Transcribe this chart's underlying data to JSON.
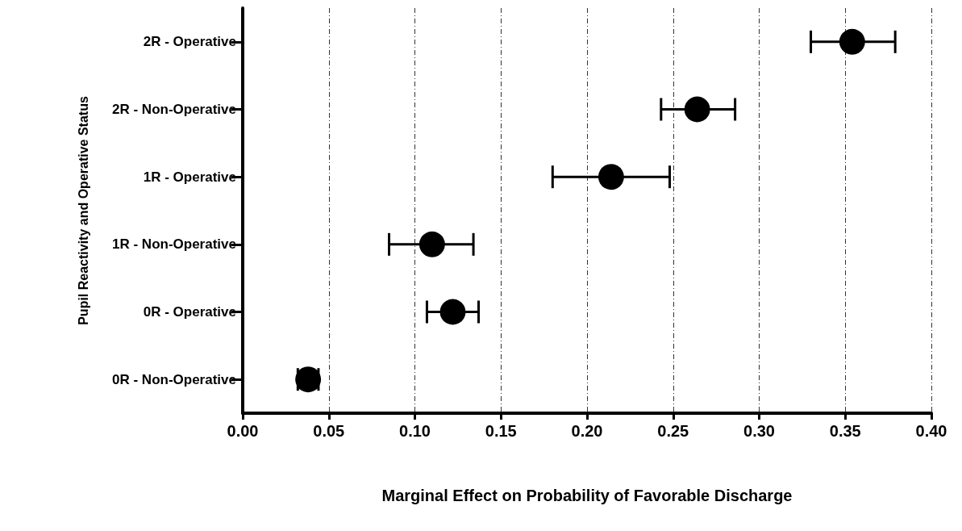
{
  "chart_data": {
    "type": "scatter",
    "orientation": "horizontal",
    "xlabel": "Marginal Effect on Probability of Favorable Discharge",
    "ylabel": "Pupil Reactivity and Operative Status",
    "categories": [
      "2R - Operative",
      "2R - Non-Operative",
      "1R - Operative",
      "1R - Non-Operative",
      "0R - Operative",
      "0R - Non-Operative"
    ],
    "values": [
      0.354,
      0.264,
      0.214,
      0.11,
      0.122,
      0.038
    ],
    "errors": [
      [
        0.33,
        0.379
      ],
      [
        0.243,
        0.286
      ],
      [
        0.18,
        0.248
      ],
      [
        0.085,
        0.134
      ],
      [
        0.107,
        0.137
      ],
      [
        0.032,
        0.044
      ]
    ],
    "color": "#000000",
    "marker": "circle",
    "xlim": [
      0,
      0.4
    ],
    "xticks": [
      {
        "value": 0,
        "label": "0.00"
      },
      {
        "value": 0.05,
        "label": "0.05"
      },
      {
        "value": 0.1,
        "label": "0.10"
      },
      {
        "value": 0.15,
        "label": "0.15"
      },
      {
        "value": 0.2,
        "label": "0.20"
      },
      {
        "value": 0.25,
        "label": "0.25"
      },
      {
        "value": 0.3,
        "label": "0.30"
      },
      {
        "value": 0.35,
        "label": "0.35"
      },
      {
        "value": 0.4,
        "label": "0.40"
      }
    ],
    "grid": "x"
  }
}
